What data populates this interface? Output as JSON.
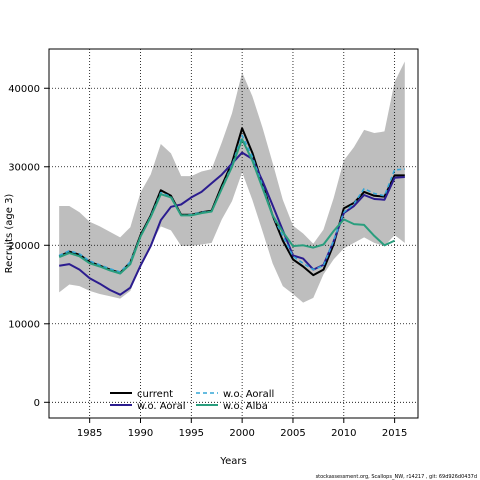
{
  "chart_data": {
    "type": "line",
    "xlabel": "Years",
    "ylabel": "Recruits (age 3)",
    "xlim": [
      1981,
      2017.3
    ],
    "ylim": [
      -2000,
      45000
    ],
    "xticks": [
      1985,
      1990,
      1995,
      2000,
      2005,
      2010,
      2015
    ],
    "yticks": [
      0,
      10000,
      20000,
      30000,
      40000
    ],
    "grid": true,
    "legend_position": "bottom-left",
    "footer": "stockassessment.org, Scallops_NW, r14217 , git: 69d926d0437d",
    "band": {
      "color": "#bebebe",
      "x": [
        1982,
        1983,
        1984,
        1985,
        1986,
        1987,
        1988,
        1989,
        1990,
        1991,
        1992,
        1993,
        1994,
        1995,
        1996,
        1997,
        1998,
        1999,
        2000,
        2001,
        2002,
        2003,
        2004,
        2005,
        2006,
        2007,
        2008,
        2009,
        2010,
        2011,
        2012,
        2013,
        2014,
        2015,
        2016
      ],
      "upper": [
        25000,
        25000,
        24200,
        23000,
        22400,
        21700,
        21000,
        22300,
        26700,
        29000,
        32900,
        31700,
        28800,
        28800,
        29400,
        29700,
        33100,
        36800,
        42000,
        39000,
        35000,
        30500,
        25800,
        22500,
        21500,
        20200,
        22000,
        26000,
        30800,
        32500,
        34700,
        34300,
        34500,
        40800,
        43400
      ],
      "lower": [
        14000,
        15000,
        14800,
        14200,
        13800,
        13500,
        13200,
        14200,
        17500,
        20000,
        22400,
        21900,
        19900,
        19900,
        20100,
        20300,
        23300,
        25600,
        29300,
        25800,
        21800,
        17700,
        14800,
        13800,
        12700,
        13300,
        16300,
        18200,
        19600,
        20300,
        21000,
        20300,
        19900,
        21300,
        20300
      ]
    },
    "series": [
      {
        "name": "current",
        "color": "#000000",
        "width": 2,
        "dash": "",
        "x": [
          1982,
          1983,
          1984,
          1985,
          1986,
          1987,
          1988,
          1989,
          1990,
          1991,
          1992,
          1993,
          1994,
          1995,
          1996,
          1997,
          1998,
          1999,
          2000,
          2001,
          2002,
          2003,
          2004,
          2005,
          2006,
          2007,
          2008,
          2009,
          2010,
          2011,
          2012,
          2013,
          2014,
          2015,
          2016
        ],
        "values": [
          18600,
          19200,
          18800,
          17900,
          17400,
          16900,
          16500,
          17800,
          21300,
          23800,
          27000,
          26300,
          23900,
          23900,
          24200,
          24400,
          27600,
          30500,
          34900,
          31800,
          27800,
          23800,
          20600,
          18200,
          17300,
          16200,
          16900,
          20100,
          24700,
          25400,
          26800,
          26300,
          26200,
          28900,
          28900
        ]
      },
      {
        "name": "w.o. Aoral",
        "color": "#2b1c8f",
        "width": 2,
        "dash": "",
        "x": [
          1982,
          1983,
          1984,
          1985,
          1986,
          1987,
          1988,
          1989,
          1990,
          1991,
          1992,
          1993,
          1994,
          1995,
          1996,
          1997,
          1998,
          1999,
          2000,
          2001,
          2002,
          2003,
          2004,
          2005,
          2006,
          2007,
          2008,
          2009,
          2010,
          2011,
          2012,
          2013,
          2014,
          2015,
          2016
        ],
        "values": [
          17400,
          17600,
          16900,
          15800,
          15100,
          14300,
          13700,
          14600,
          17400,
          19900,
          23200,
          24900,
          25200,
          26100,
          26800,
          27900,
          29000,
          30400,
          31800,
          31000,
          28200,
          25100,
          21900,
          18700,
          18300,
          16900,
          17500,
          20500,
          24100,
          25000,
          26400,
          25900,
          25800,
          28600,
          28700
        ]
      },
      {
        "name": "w.o. Aorall",
        "color": "#33a5d6",
        "width": 1.6,
        "dash": "4,3",
        "x": [
          1982,
          1983,
          1984,
          1985,
          1986,
          1987,
          1988,
          1989,
          1990,
          1991,
          1992,
          1993,
          1994,
          1995,
          1996,
          1997,
          1998,
          1999,
          2000,
          2001,
          2002,
          2003,
          2004,
          2005,
          2006,
          2007,
          2008,
          2009,
          2010,
          2011,
          2012,
          2013,
          2014,
          2015,
          2016
        ],
        "values": [
          18700,
          19300,
          18900,
          18000,
          17500,
          17000,
          16600,
          17900,
          21100,
          23700,
          26700,
          26200,
          23800,
          23900,
          24200,
          24300,
          27300,
          30200,
          34000,
          31300,
          27600,
          23800,
          21200,
          18600,
          17700,
          16900,
          17400,
          20600,
          24200,
          25300,
          27200,
          26600,
          26300,
          29600,
          29700
        ]
      },
      {
        "name": "w.o. Alba",
        "color": "#2a9e7e",
        "width": 2,
        "dash": "",
        "x": [
          1982,
          1983,
          1984,
          1985,
          1986,
          1987,
          1988,
          1989,
          1990,
          1991,
          1992,
          1993,
          1994,
          1995,
          1996,
          1997,
          1998,
          1999,
          2000,
          2001,
          2002,
          2003,
          2004,
          2005,
          2006,
          2007,
          2008,
          2009,
          2010,
          2011,
          2012,
          2013,
          2014,
          2015
        ],
        "values": [
          18500,
          19000,
          18600,
          17700,
          17300,
          16800,
          16400,
          17600,
          21100,
          23600,
          26500,
          26100,
          23800,
          23800,
          24100,
          24300,
          27200,
          30000,
          33500,
          30800,
          27300,
          23800,
          21700,
          19900,
          20000,
          19700,
          20100,
          21800,
          23300,
          22700,
          22600,
          21200,
          20000,
          20600
        ]
      }
    ]
  }
}
